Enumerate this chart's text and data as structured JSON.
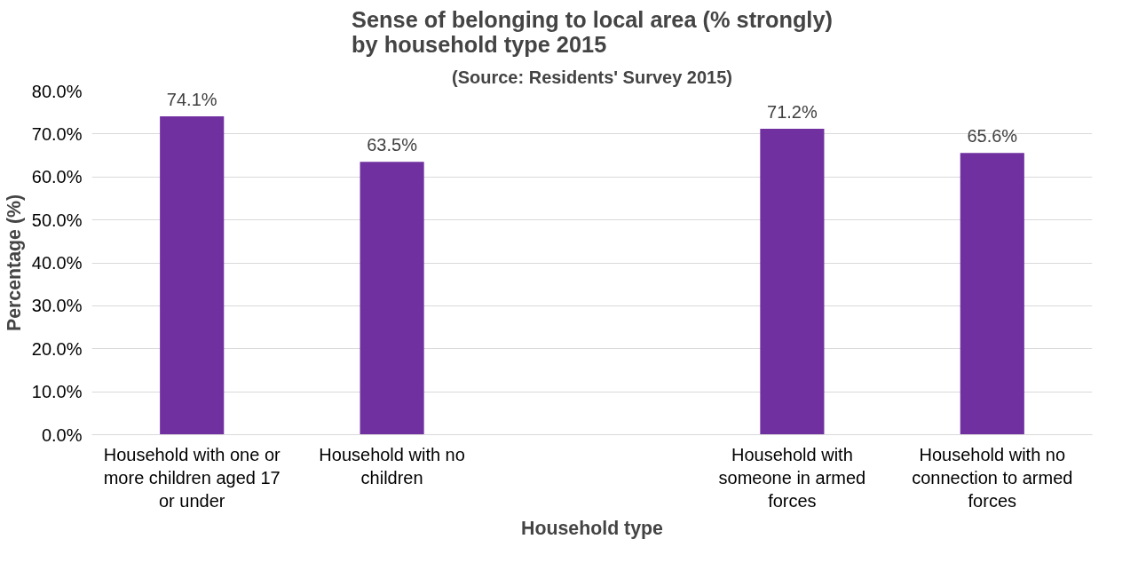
{
  "chart_data": {
    "type": "bar",
    "title": "Sense of belonging to local area (% strongly)\nby household type 2015",
    "subtitle": "(Source: Residents' Survey 2015)",
    "xlabel": "Household type",
    "ylabel": "Percentage (%)",
    "categories": [
      "Household with one or more children aged 17 or under",
      "Household with no children",
      null,
      "Household with someone in armed forces",
      "Household with no connection to armed forces"
    ],
    "values": [
      74.1,
      63.5,
      null,
      71.2,
      65.6
    ],
    "color": "#7030a0",
    "value_labels": [
      "74.1%",
      "63.5%",
      null,
      "71.2%",
      "65.6%"
    ],
    "ylim": [
      0,
      80
    ],
    "yticks": [
      {
        "value": 0,
        "label": "0.0%"
      },
      {
        "value": 10,
        "label": "10.0%"
      },
      {
        "value": 20,
        "label": "20.0%"
      },
      {
        "value": 30,
        "label": "30.0%"
      },
      {
        "value": 40,
        "label": "40.0%"
      },
      {
        "value": 50,
        "label": "50.0%"
      },
      {
        "value": 60,
        "label": "60.0%"
      },
      {
        "value": 70,
        "label": "70.0%"
      },
      {
        "value": 80,
        "label": "80.0%"
      }
    ],
    "grid": "y"
  }
}
